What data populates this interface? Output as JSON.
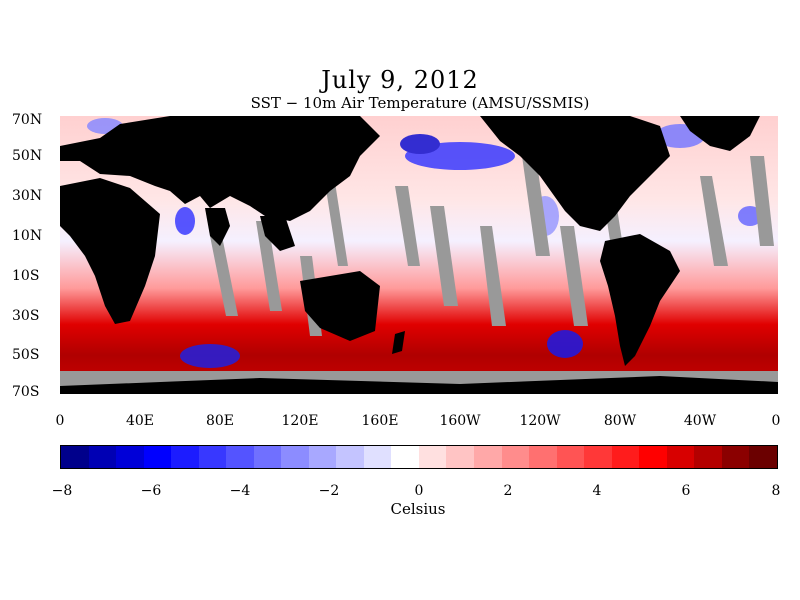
{
  "title": "July 9, 2012",
  "subtitle": "SST − 10m Air Temperature (AMSU/SSMIS)",
  "lat_labels": [
    "70N",
    "50N",
    "30N",
    "10N",
    "10S",
    "30S",
    "50S",
    "70S"
  ],
  "lon_labels": [
    "0",
    "40E",
    "80E",
    "120E",
    "160E",
    "160W",
    "120W",
    "80W",
    "40W",
    "0"
  ],
  "colorbar": {
    "labels": [
      "−8",
      "−6",
      "−4",
      "−2",
      "0",
      "2",
      "4",
      "6",
      "8"
    ],
    "min": -8,
    "max": 8,
    "title": "Celsius",
    "colors": [
      "#00008b",
      "#0000b4",
      "#0000d8",
      "#0000ff",
      "#1c1cff",
      "#3838ff",
      "#5454ff",
      "#7070ff",
      "#8c8cff",
      "#a8a8ff",
      "#c4c4ff",
      "#e0e0ff",
      "#ffffff",
      "#ffe0e0",
      "#ffc4c4",
      "#ffa8a8",
      "#ff8c8c",
      "#ff7070",
      "#ff5454",
      "#ff3838",
      "#ff1c1c",
      "#ff0000",
      "#d80000",
      "#b40000",
      "#8b0000",
      "#6b0000"
    ]
  },
  "map": {
    "land_color": "#000000",
    "no_data_color": "#999999"
  }
}
